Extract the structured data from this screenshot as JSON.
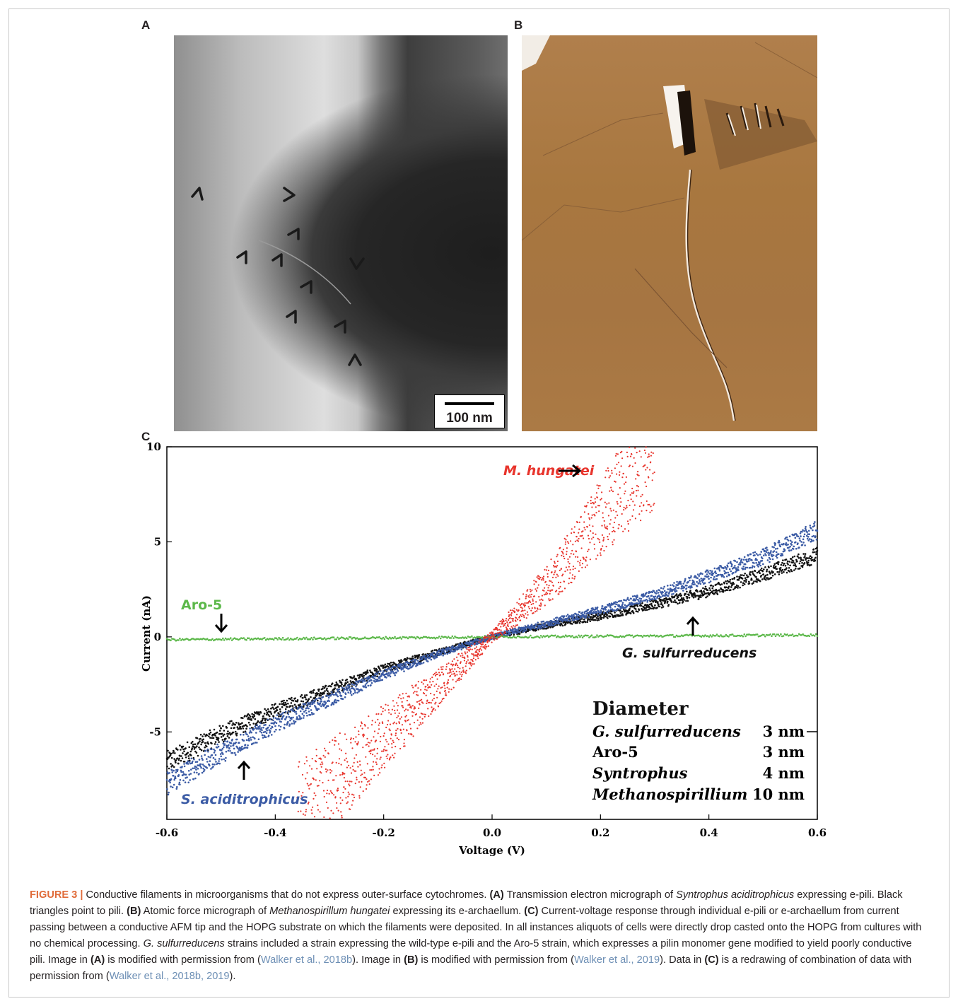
{
  "panels": {
    "a": {
      "letter": "A",
      "scale_label": "100 nm"
    },
    "b": {
      "letter": "B"
    },
    "c": {
      "letter": "C"
    }
  },
  "chart_data": {
    "type": "scatter",
    "xlabel": "Voltage (V)",
    "ylabel": "Current (nA)",
    "xlim": [
      -0.6,
      0.6
    ],
    "ylim": [
      -9.6,
      10
    ],
    "xticks": [
      -0.6,
      -0.4,
      -0.2,
      0.0,
      0.2,
      0.4,
      0.6
    ],
    "xtick_labels": [
      "-0.6",
      "-0.4",
      "-0.2",
      "0.0",
      "0.2",
      "0.4",
      "0.6"
    ],
    "yticks": [
      -5,
      0,
      5,
      10
    ],
    "ytick_labels": [
      "-5",
      "0",
      "5",
      "10"
    ],
    "grid": false,
    "series": [
      {
        "name": "M. hungatei",
        "color": "#e8342c",
        "x": [
          -0.36,
          -0.3,
          -0.24,
          -0.18,
          -0.12,
          -0.06,
          0.0,
          0.06,
          0.12,
          0.18,
          0.24,
          0.3
        ],
        "y": [
          -9.6,
          -7.9,
          -6.3,
          -4.8,
          -3.2,
          -1.6,
          0.0,
          1.6,
          3.3,
          5.6,
          7.7,
          9.7
        ]
      },
      {
        "name": "S. aciditrophicus",
        "color": "#3b5ba5",
        "x": [
          -0.6,
          -0.5,
          -0.4,
          -0.3,
          -0.2,
          -0.1,
          0.0,
          0.1,
          0.2,
          0.3,
          0.4,
          0.5,
          0.6
        ],
        "y": [
          -7.7,
          -6.1,
          -4.6,
          -3.3,
          -2.0,
          -0.9,
          0.0,
          0.7,
          1.4,
          2.2,
          3.2,
          4.2,
          5.6
        ]
      },
      {
        "name": "G. sulfurreducens",
        "color": "#111111",
        "x": [
          -0.6,
          -0.5,
          -0.4,
          -0.3,
          -0.2,
          -0.1,
          0.0,
          0.1,
          0.2,
          0.3,
          0.4,
          0.5,
          0.6
        ],
        "y": [
          -6.6,
          -5.1,
          -3.9,
          -2.8,
          -1.7,
          -0.8,
          0.0,
          0.6,
          1.1,
          1.7,
          2.4,
          3.3,
          4.3
        ]
      },
      {
        "name": "Aro-5",
        "color": "#5cb84a",
        "x": [
          -0.6,
          -0.3,
          0.0,
          0.3,
          0.6
        ],
        "y": [
          -0.15,
          -0.08,
          0.0,
          0.05,
          0.1
        ]
      }
    ],
    "annotations": {
      "m_hungatei": "M. hungatei",
      "aro5": "Aro-5",
      "g_sulfurreducens": "G. sulfurreducens",
      "s_aciditrophicus": "S. aciditrophicus"
    },
    "diameter_table": {
      "title": "Diameter",
      "rows": [
        {
          "organism": "G. sulfurreducens",
          "value": "3 nm",
          "italic": true
        },
        {
          "organism": "Aro-5",
          "value": "3 nm",
          "italic": false
        },
        {
          "organism": "Syntrophus",
          "value": "4 nm",
          "italic": true
        },
        {
          "organism": "Methanospirillium",
          "value": "10 nm",
          "italic": true
        }
      ]
    }
  },
  "caption": {
    "label": "FIGURE 3 |",
    "s1": " Conductive filaments in microorganisms that do not express outer-surface cytochromes. ",
    "a_tag": "(A)",
    "s2": " Transmission electron micrograph of ",
    "org1": "Syntrophus aciditrophicus",
    "s3": " expressing e-pili. Black triangles point to pili. ",
    "b_tag": "(B)",
    "s4": " Atomic force micrograph of ",
    "org2": "Methanospirillum hungatei",
    "s5": " expressing its e-archaellum. ",
    "c_tag": "(C)",
    "s6": " Current-voltage response through individual e-pili or e-archaellum from current passing between a conductive AFM tip and the HOPG substrate on which the filaments were deposited. In all instances aliquots of cells were directly drop casted onto the HOPG from cultures with no chemical processing. ",
    "org3": "G. sulfurreducens",
    "s7": " strains included a strain expressing the wild-type e-pili and the Aro-5 strain, which expresses a pilin monomer gene modified to yield poorly conductive pili. Image in ",
    "a_tag2": "(A)",
    "s8": " is modified with permission from (",
    "ref1": "Walker et al., 2018b",
    "s9": "). Image in ",
    "b_tag2": "(B)",
    "s10": " is modified with permission from (",
    "ref2": "Walker et al., 2019",
    "s11": "). Data in ",
    "c_tag2": "(C)",
    "s12": " is a redrawing of combination of data with permission from (",
    "ref3": "Walker et al., 2018b, 2019",
    "s13": ")."
  }
}
